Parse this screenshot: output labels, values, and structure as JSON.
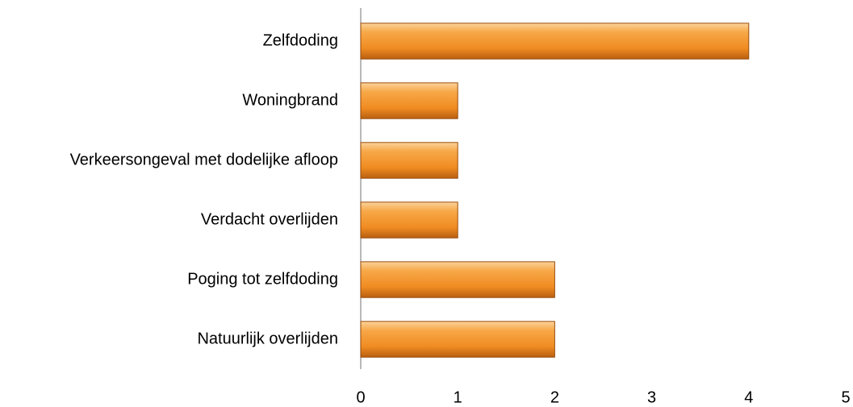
{
  "chart_data": {
    "type": "bar",
    "orientation": "horizontal",
    "categories": [
      "Zelfdoding",
      "Woningbrand",
      "Verkeersongeval met dodelijke afloop",
      "Verdacht overlijden",
      "Poging tot zelfdoding",
      "Natuurlijk overlijden"
    ],
    "values": [
      4,
      1,
      1,
      1,
      2,
      2
    ],
    "color": "#f39a36",
    "xlim": [
      0,
      5
    ],
    "xticks": [
      0,
      1,
      2,
      3,
      4,
      5
    ],
    "grid": false
  }
}
